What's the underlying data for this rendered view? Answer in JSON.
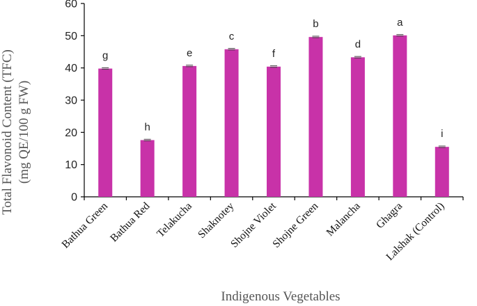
{
  "chart_data": {
    "type": "bar",
    "xlabel": "Indigenous Vegetables",
    "ylabel_line1": "Total Flavonoid Content (TFC)",
    "ylabel_line2": "(mg QE/100 g FW)",
    "ylim": [
      0,
      60
    ],
    "yticks": [
      0,
      10,
      20,
      30,
      40,
      50,
      60
    ],
    "categories": [
      "Bathua Green",
      "Bathua Red",
      "Telakucha",
      "Shaknotey",
      "Shojne Violet",
      "Shojne Green",
      "Malancha",
      "Ghagra",
      "Lalshak (Control)"
    ],
    "values": [
      39.8,
      17.6,
      40.6,
      45.8,
      40.4,
      49.6,
      43.3,
      50.1,
      15.5
    ],
    "significance": [
      "g",
      "h",
      "e",
      "c",
      "f",
      "b",
      "d",
      "a",
      "i"
    ],
    "bar_color": "#c832a8",
    "grid": false,
    "legend": "none"
  }
}
